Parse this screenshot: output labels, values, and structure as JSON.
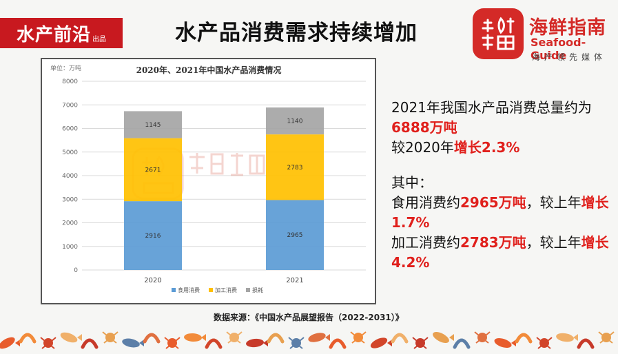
{
  "header": {
    "logo_left_main": "水产前沿",
    "logo_left_sub": "出品",
    "title": "水产品消费需求持续增加",
    "brand_name": "海鲜指南",
    "brand_en": "Seafood-Guide",
    "brand_slogan": "海产领先媒体"
  },
  "colors": {
    "red": "#d42a27",
    "highlight": "#e0201c",
    "food": "#5b9bd5",
    "processing": "#ffc000",
    "loss": "#a5a5a5"
  },
  "chart_data": {
    "type": "bar",
    "stacked": true,
    "title": "2020年、2021年中国水产品消费情况",
    "unit_label": "单位：万吨",
    "categories": [
      "2020",
      "2021"
    ],
    "series": [
      {
        "name": "食用消费",
        "values": [
          2916,
          2965
        ],
        "color": "#5b9bd5"
      },
      {
        "name": "加工消费",
        "values": [
          2671,
          2783
        ],
        "color": "#ffc000"
      },
      {
        "name": "损耗",
        "values": [
          1145,
          1140
        ],
        "color": "#a5a5a5"
      }
    ],
    "ylim": [
      0,
      8000
    ],
    "yticks": [
      "0",
      "1000",
      "2000",
      "3000",
      "4000",
      "5000",
      "6000",
      "7000",
      "8000"
    ],
    "grid": true,
    "legend": "bottom"
  },
  "side": {
    "line1": "2021年我国水产品消费总量约为",
    "line2": "6888万吨",
    "line3_a": "较2020年",
    "line3_b": "增长2.3%",
    "line4": "其中：",
    "line5_a": "食用消费约",
    "line5_b": "2965万吨",
    "line5_c": "，较上年",
    "line5_d": "增长1.7%",
    "line6_a": "加工消费约",
    "line6_b": "2783万吨",
    "line6_c": "，较上年",
    "line6_d": "增长4.2%"
  },
  "source": "数据来源：《中国水产品展望报告（2022-2031）》"
}
